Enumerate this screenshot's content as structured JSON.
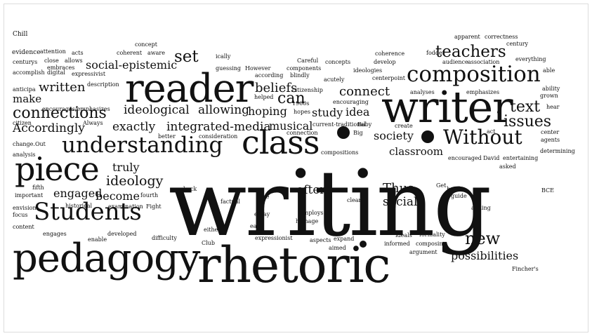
{
  "cloud": {
    "text_color": "#111111",
    "background": "#ffffff",
    "words": [
      "Chill",
      "evidence",
      "attention",
      "acts",
      "concept",
      "coherent",
      "aware",
      "apparent",
      "correctness",
      "century",
      "coherence",
      "fodder",
      "centurys",
      "close",
      "allows",
      "embraces",
      "ically",
      "Careful",
      "concepts",
      "develop",
      "audience",
      "association",
      "everything",
      "accomplish",
      "digital",
      "expressivist",
      "guessing",
      "However",
      "components",
      "ideologies",
      "centerpoint",
      "able",
      "anticipa",
      "description",
      "helped",
      "citizenship",
      "ability",
      "grown",
      "analyses",
      "emphasizes",
      "hear",
      "citizen",
      "encourages/emphasizes",
      "Always",
      "1960s",
      "encouraging",
      "hopes",
      "change.Out",
      "better",
      "consideration",
      "connection",
      "current-traditional",
      "Baby",
      "create",
      "Big",
      "act",
      "center",
      "agents",
      "determining",
      "analysis",
      "compositions",
      "encouraged",
      "David",
      "entertaining",
      "asked",
      "fifth",
      "important",
      "fourth",
      "historical",
      "examination",
      "Fight",
      "factual",
      "Get",
      "BCE",
      "envision",
      "focus",
      "content",
      "engages",
      "developed",
      "difficulty",
      "enable",
      "Club",
      "either",
      "expressionist",
      "aspects",
      "expand",
      "aimed",
      "informed",
      "composing",
      "argument",
      "formality",
      "ideals",
      "employs",
      "homage",
      "essay",
      "easy",
      "clear",
      "Fincher's",
      "he/she",
      "guide",
      "aiming",
      "back",
      "Due",
      "according",
      "blindly",
      "acutely",
      "set",
      "reader",
      "social-epistemic",
      "teachers",
      "composition",
      "written",
      "make",
      "connections",
      "Accordingly",
      "beliefs",
      "can",
      "connect",
      "hoping",
      "ideological",
      "allowing",
      "study",
      "idea",
      "writer",
      "text",
      "issues",
      "musical",
      "exactly",
      "integrated-media",
      "society",
      "Without",
      "understanding",
      "class",
      "classroom",
      "truly",
      "ideology",
      "piece",
      "engaged",
      "become",
      "Students",
      "often",
      "Thus",
      "social",
      "new",
      "possibilities",
      "pedagogy",
      "rhetoric",
      "writing"
    ]
  }
}
